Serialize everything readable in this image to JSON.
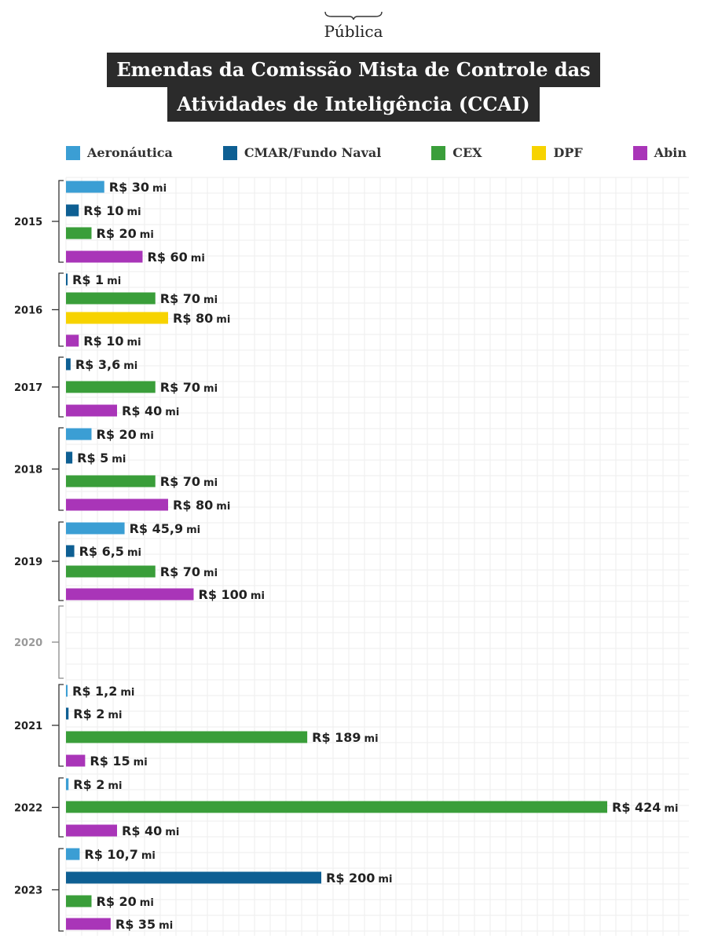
{
  "brand": {
    "name": "Pública"
  },
  "title": {
    "line1": "Emendas da Comissão Mista de Controle das",
    "line2": "Atividades de Inteligência (CCAI)"
  },
  "legend": [
    {
      "name": "Aeronáutica",
      "color": "#3b9ed4"
    },
    {
      "name": "CMAR/Fundo Naval",
      "color": "#0e5f93"
    },
    {
      "name": "CEX",
      "color": "#3a9e3a"
    },
    {
      "name": "DPF",
      "color": "#f7d300"
    },
    {
      "name": "Abin",
      "color": "#a935b8"
    }
  ],
  "colors": {
    "text": "#222222",
    "muted_year": "#9a9a9a",
    "grid": "#eeeeee",
    "title_bg": "#2b2b2b"
  },
  "chart_data": {
    "type": "bar",
    "orientation": "horizontal",
    "grouping": "by year",
    "grid": true,
    "legend_position": "top",
    "value_prefix": "R$",
    "value_suffix": "mi",
    "xlim": [
      0,
      424
    ],
    "groups": [
      {
        "year": "2015",
        "bars": [
          {
            "series": "Aeronáutica",
            "value": 30,
            "label": "R$ 30"
          },
          {
            "series": "CMAR/Fundo Naval",
            "value": 10,
            "label": "R$ 10"
          },
          {
            "series": "CEX",
            "value": 20,
            "label": "R$ 20"
          },
          {
            "series": "Abin",
            "value": 60,
            "label": "R$ 60"
          }
        ]
      },
      {
        "year": "2016",
        "bars": [
          {
            "series": "CMAR/Fundo Naval",
            "value": 1,
            "label": "R$ 1"
          },
          {
            "series": "CEX",
            "value": 70,
            "label": "R$ 70"
          },
          {
            "series": "DPF",
            "value": 80,
            "label": "R$ 80"
          },
          {
            "series": "Abin",
            "value": 10,
            "label": "R$ 10"
          }
        ]
      },
      {
        "year": "2017",
        "bars": [
          {
            "series": "CMAR/Fundo Naval",
            "value": 3.6,
            "label": "R$ 3,6"
          },
          {
            "series": "CEX",
            "value": 70,
            "label": "R$ 70"
          },
          {
            "series": "Abin",
            "value": 40,
            "label": "R$ 40"
          }
        ]
      },
      {
        "year": "2018",
        "bars": [
          {
            "series": "Aeronáutica",
            "value": 20,
            "label": "R$ 20"
          },
          {
            "series": "CMAR/Fundo Naval",
            "value": 5,
            "label": "R$ 5"
          },
          {
            "series": "CEX",
            "value": 70,
            "label": "R$ 70"
          },
          {
            "series": "Abin",
            "value": 80,
            "label": "R$ 80"
          }
        ]
      },
      {
        "year": "2019",
        "bars": [
          {
            "series": "Aeronáutica",
            "value": 45.9,
            "label": "R$ 45,9"
          },
          {
            "series": "CMAR/Fundo Naval",
            "value": 6.5,
            "label": "R$ 6,5"
          },
          {
            "series": "CEX",
            "value": 70,
            "label": "R$ 70"
          },
          {
            "series": "Abin",
            "value": 100,
            "label": "R$ 100"
          }
        ]
      },
      {
        "year": "2020",
        "muted": true,
        "bars": []
      },
      {
        "year": "2021",
        "bars": [
          {
            "series": "Aeronáutica",
            "value": 1.2,
            "label": "R$ 1,2"
          },
          {
            "series": "CMAR/Fundo Naval",
            "value": 2,
            "label": "R$ 2"
          },
          {
            "series": "CEX",
            "value": 189,
            "label": "R$ 189"
          },
          {
            "series": "Abin",
            "value": 15,
            "label": "R$ 15"
          }
        ]
      },
      {
        "year": "2022",
        "bars": [
          {
            "series": "Aeronáutica",
            "value": 2,
            "label": "R$ 2"
          },
          {
            "series": "CEX",
            "value": 424,
            "label": "R$ 424"
          },
          {
            "series": "Abin",
            "value": 40,
            "label": "R$ 40"
          }
        ]
      },
      {
        "year": "2023",
        "bars": [
          {
            "series": "Aeronáutica",
            "value": 10.7,
            "label": "R$ 10,7"
          },
          {
            "series": "CMAR/Fundo Naval",
            "value": 200,
            "label": "R$ 200"
          },
          {
            "series": "CEX",
            "value": 20,
            "label": "R$ 20"
          },
          {
            "series": "Abin",
            "value": 35,
            "label": "R$ 35"
          }
        ]
      }
    ]
  }
}
